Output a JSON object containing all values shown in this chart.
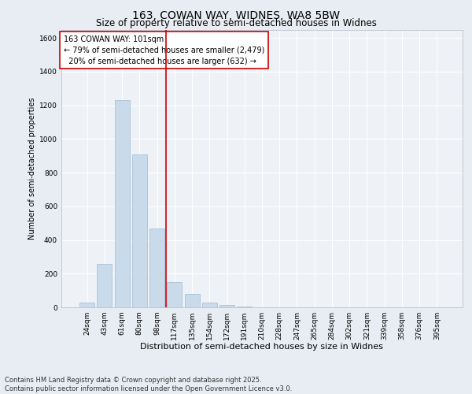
{
  "title_line1": "163, COWAN WAY, WIDNES, WA8 5BW",
  "title_line2": "Size of property relative to semi-detached houses in Widnes",
  "xlabel": "Distribution of semi-detached houses by size in Widnes",
  "ylabel": "Number of semi-detached properties",
  "categories": [
    "24sqm",
    "43sqm",
    "61sqm",
    "80sqm",
    "98sqm",
    "117sqm",
    "135sqm",
    "154sqm",
    "172sqm",
    "191sqm",
    "210sqm",
    "228sqm",
    "247sqm",
    "265sqm",
    "284sqm",
    "302sqm",
    "321sqm",
    "339sqm",
    "358sqm",
    "376sqm",
    "395sqm"
  ],
  "values": [
    30,
    258,
    1230,
    910,
    470,
    150,
    80,
    30,
    15,
    5,
    2,
    1,
    0,
    0,
    0,
    0,
    0,
    0,
    0,
    0,
    0
  ],
  "bar_color": "#c9daea",
  "bar_edge_color": "#a0bcd4",
  "red_line_x": 4.5,
  "red_line_color": "#cc0000",
  "annotation_text": "163 COWAN WAY: 101sqm\n← 79% of semi-detached houses are smaller (2,479)\n  20% of semi-detached houses are larger (632) →",
  "annotation_box_color": "#ffffff",
  "annotation_box_edge": "#cc0000",
  "ylim": [
    0,
    1650
  ],
  "yticks": [
    0,
    200,
    400,
    600,
    800,
    1000,
    1200,
    1400,
    1600
  ],
  "background_color": "#e8edf3",
  "plot_background": "#eef2f7",
  "footer_line1": "Contains HM Land Registry data © Crown copyright and database right 2025.",
  "footer_line2": "Contains public sector information licensed under the Open Government Licence v3.0.",
  "title_fontsize": 10,
  "subtitle_fontsize": 8.5,
  "annotation_fontsize": 7,
  "ylabel_fontsize": 7,
  "xlabel_fontsize": 8,
  "footer_fontsize": 6,
  "tick_fontsize": 6.5
}
